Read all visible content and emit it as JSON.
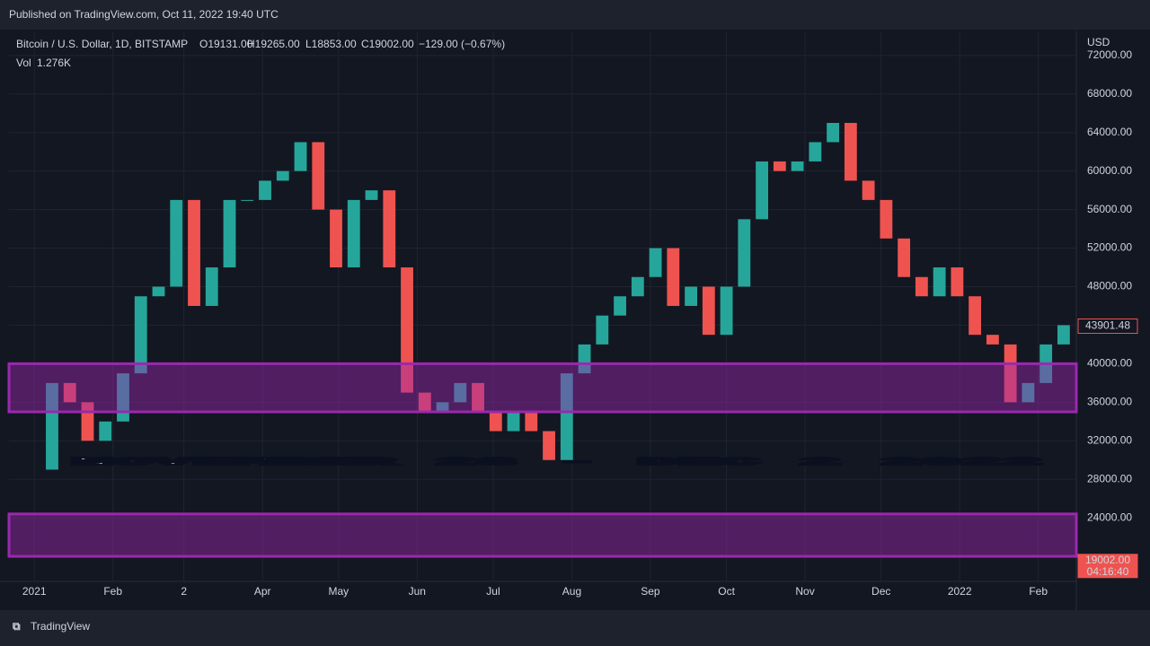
{
  "header": {
    "published": "Published on TradingView.com, Oct 11, 2022 19:40 UTC"
  },
  "legend": {
    "symbol": "Bitcoin / U.S. Dollar, 1D, BITSTAMP",
    "open": "O19131.00",
    "high": "H19265.00",
    "low": "L18853.00",
    "close": "C19002.00",
    "change": "−129.00 (−0.67%)",
    "vol_label": "Vol",
    "vol_value": "1.276K"
  },
  "currency": "USD",
  "overlay_text": "NOVEMBER 28 - DEC 2 2022",
  "footer": {
    "brand": "TradingView"
  },
  "chart_data": {
    "type": "candlestick",
    "x": [
      0,
      7,
      14,
      21,
      28,
      35,
      42,
      49,
      56,
      63,
      70,
      77,
      84,
      91,
      98,
      105,
      112,
      119,
      126,
      133,
      140,
      147,
      154,
      161,
      168,
      175,
      182,
      189,
      196,
      203,
      210,
      217,
      224,
      231,
      238,
      245,
      252,
      259,
      266,
      273,
      280,
      287,
      294,
      301,
      308,
      315,
      322,
      329,
      336,
      343,
      350,
      357,
      364,
      371,
      378,
      385,
      392,
      399,
      406
    ],
    "values": [
      29000,
      38000,
      36000,
      32000,
      34000,
      39000,
      47000,
      48000,
      57000,
      46000,
      50000,
      57000,
      57000,
      59000,
      60000,
      63000,
      56000,
      50000,
      57000,
      58000,
      50000,
      37000,
      35000,
      36000,
      38000,
      35000,
      33000,
      35000,
      33000,
      30000,
      39000,
      42000,
      45000,
      47000,
      49000,
      52000,
      46000,
      48000,
      43000,
      48000,
      55000,
      61000,
      60000,
      61000,
      63000,
      65000,
      59000,
      57000,
      53000,
      49000,
      47000,
      50000,
      47000,
      43000,
      42000,
      36000,
      38000,
      42000,
      44000
    ],
    "up_color": "#26a69a",
    "down_color": "#ef5350",
    "zones": [
      [
        35000,
        40000
      ],
      [
        20000,
        24400
      ]
    ],
    "zone_color": "#9c27b0",
    "xlim": [
      -10,
      411
    ],
    "xticks": [
      {
        "value": 0,
        "label": "2021"
      },
      {
        "value": 31,
        "label": "Feb"
      },
      {
        "value": 59,
        "label": "2"
      },
      {
        "value": 90,
        "label": "Apr"
      },
      {
        "value": 120,
        "label": "May"
      },
      {
        "value": 151,
        "label": "Jun"
      },
      {
        "value": 181,
        "label": "Jul"
      },
      {
        "value": 212,
        "label": "Aug"
      },
      {
        "value": 243,
        "label": "Sep"
      },
      {
        "value": 273,
        "label": "Oct"
      },
      {
        "value": 304,
        "label": "Nov"
      },
      {
        "value": 334,
        "label": "Dec"
      },
      {
        "value": 365,
        "label": "2022"
      },
      {
        "value": 396,
        "label": "Feb"
      }
    ],
    "ylim": [
      17400,
      74500
    ],
    "yticks": [
      {
        "value": 24000,
        "label": "24000.00"
      },
      {
        "value": 28000,
        "label": "28000.00"
      },
      {
        "value": 32000,
        "label": "32000.00"
      },
      {
        "value": 36000,
        "label": "36000.00"
      },
      {
        "value": 40000,
        "label": "40000.00"
      },
      {
        "value": 44000,
        "label": "44000.00"
      },
      {
        "value": 48000,
        "label": "48000.00"
      },
      {
        "value": 52000,
        "label": "52000.00"
      },
      {
        "value": 56000,
        "label": "56000.00"
      },
      {
        "value": 60000,
        "label": "60000.00"
      },
      {
        "value": 64000,
        "label": "64000.00"
      },
      {
        "value": 68000,
        "label": "68000.00"
      },
      {
        "value": 72000,
        "label": "72000.00"
      }
    ],
    "grid": true,
    "price_labels": [
      {
        "value": 43901.48,
        "label": "43901.48"
      },
      {
        "value": 19002,
        "label": "19002.00",
        "countdown": "04:16:40"
      }
    ]
  }
}
